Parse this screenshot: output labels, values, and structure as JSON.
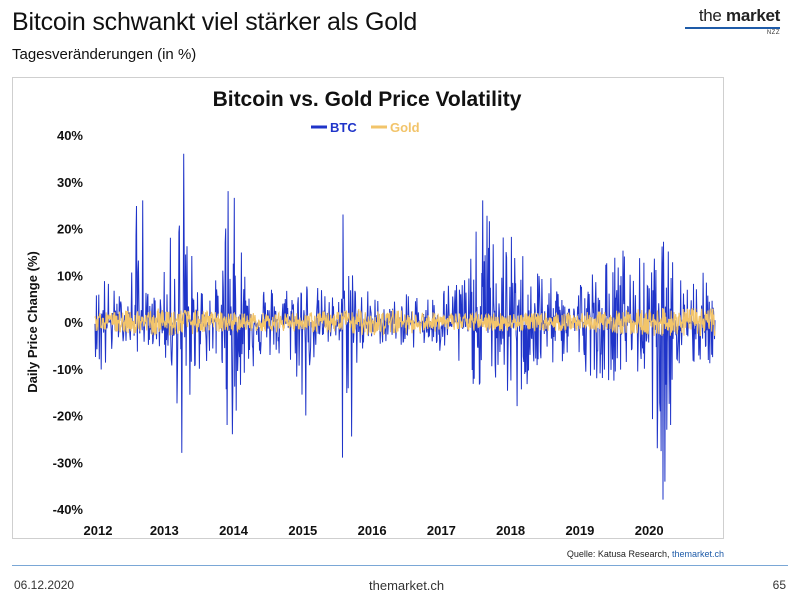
{
  "slide": {
    "title": "Bitcoin schwankt viel stärker als Gold",
    "subtitle": "Tagesveränderungen (in %)"
  },
  "logo": {
    "the": "the",
    "market": "market",
    "sub": "NZZ"
  },
  "source": {
    "prefix": "Quelle: Katusa Research, ",
    "link": "themarket.ch"
  },
  "footer": {
    "date": "06.12.2020",
    "site": "themarket.ch",
    "page": "65"
  },
  "colors": {
    "btc": "#1f34c9",
    "gold": "#f2c46a"
  },
  "chart_data": {
    "type": "line",
    "title": "Bitcoin vs. Gold Price Volatility",
    "xlabel": "",
    "ylabel": "Daily Price Change (%)",
    "xlim": [
      2012,
      2020.95
    ],
    "ylim": [
      -40,
      40
    ],
    "xticks": [
      2012,
      2013,
      2014,
      2015,
      2016,
      2017,
      2018,
      2019,
      2020
    ],
    "yticks": [
      -40,
      -30,
      -20,
      -10,
      0,
      10,
      20,
      30,
      40
    ],
    "ytick_labels": [
      "-40%",
      "-30%",
      "-20%",
      "-10%",
      "0%",
      "10%",
      "20%",
      "30%",
      "40%"
    ],
    "legend": [
      "BTC",
      "Gold"
    ],
    "legend_position": "top-center",
    "grid": false,
    "series": [
      {
        "name": "BTC",
        "color": "#1f34c9",
        "envelope_x": [
          2012.0,
          2012.1,
          2012.2,
          2012.3,
          2012.4,
          2012.5,
          2012.6,
          2012.7,
          2012.8,
          2012.9,
          2013.0,
          2013.1,
          2013.2,
          2013.3,
          2013.4,
          2013.5,
          2013.6,
          2013.7,
          2013.8,
          2013.9,
          2014.0,
          2014.1,
          2014.2,
          2014.3,
          2014.4,
          2014.5,
          2014.6,
          2014.7,
          2014.8,
          2014.9,
          2015.0,
          2015.1,
          2015.2,
          2015.3,
          2015.4,
          2015.5,
          2015.6,
          2015.7,
          2015.8,
          2015.9,
          2016.0,
          2016.2,
          2016.4,
          2016.6,
          2016.8,
          2017.0,
          2017.2,
          2017.4,
          2017.6,
          2017.8,
          2018.0,
          2018.2,
          2018.4,
          2018.6,
          2018.8,
          2019.0,
          2019.2,
          2019.4,
          2019.6,
          2019.8,
          2020.0,
          2020.2,
          2020.4,
          2020.6,
          2020.8,
          2020.95
        ],
        "envelope_high": [
          6,
          14,
          9,
          7,
          6,
          9,
          26,
          8,
          6,
          7,
          11,
          20,
          28,
          36,
          15,
          9,
          10,
          9,
          10,
          28,
          28,
          20,
          16,
          10,
          10,
          9,
          8,
          8,
          9,
          10,
          12,
          9,
          8,
          7,
          6,
          6,
          8,
          23,
          7,
          8,
          6,
          5,
          5,
          7,
          6,
          8,
          11,
          13,
          26,
          22,
          19,
          16,
          14,
          9,
          8,
          11,
          12,
          14,
          17,
          15,
          13,
          18,
          13,
          12,
          11,
          9
        ],
        "envelope_low": [
          -7,
          -15,
          -11,
          -5,
          -4,
          -6,
          -7,
          -5,
          -5,
          -6,
          -8,
          -14,
          -19,
          -28,
          -14,
          -11,
          -10,
          -10,
          -8,
          -22,
          -24,
          -15,
          -12,
          -10,
          -9,
          -8,
          -9,
          -9,
          -10,
          -12,
          -20,
          -10,
          -8,
          -7,
          -6,
          -5,
          -10,
          -29,
          -8,
          -7,
          -5,
          -5,
          -5,
          -6,
          -6,
          -8,
          -11,
          -13,
          -15,
          -14,
          -18,
          -16,
          -13,
          -10,
          -9,
          -10,
          -12,
          -13,
          -12,
          -11,
          -16,
          -38,
          -12,
          -11,
          -10,
          -9
        ],
        "notable_points": [
          {
            "x": 2013.28,
            "y": 36
          },
          {
            "x": 2013.25,
            "y": -28
          },
          {
            "x": 2012.69,
            "y": 26
          },
          {
            "x": 2013.92,
            "y": 28
          },
          {
            "x": 2013.98,
            "y": -24
          },
          {
            "x": 2015.04,
            "y": -20
          },
          {
            "x": 2015.58,
            "y": 23
          },
          {
            "x": 2015.57,
            "y": -29
          },
          {
            "x": 2017.6,
            "y": 26
          },
          {
            "x": 2018.09,
            "y": -18
          },
          {
            "x": 2020.2,
            "y": -38
          }
        ]
      },
      {
        "name": "Gold",
        "color": "#f2c46a",
        "envelope_x": [
          2012,
          2013,
          2014,
          2015,
          2016,
          2017,
          2018,
          2019,
          2020,
          2020.95
        ],
        "envelope_high": [
          2,
          3,
          2,
          2,
          3,
          2,
          2,
          2,
          3,
          3
        ],
        "envelope_low": [
          -2,
          -3,
          -2,
          -2,
          -3,
          -2,
          -2,
          -2,
          -3,
          -3
        ]
      }
    ]
  }
}
